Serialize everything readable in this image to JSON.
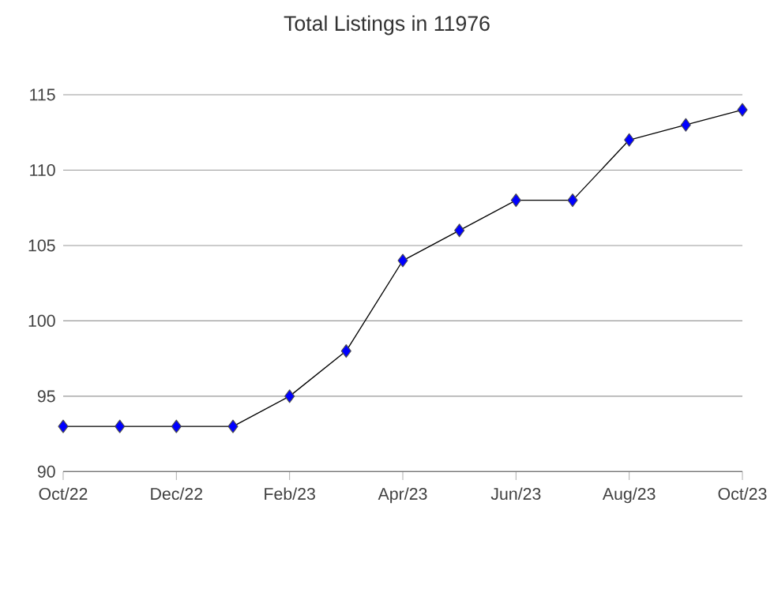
{
  "chart_data": {
    "type": "line",
    "title": "Total Listings in 11976",
    "categories": [
      "Oct/22",
      null,
      "Dec/22",
      null,
      "Feb/23",
      null,
      "Apr/23",
      null,
      "Jun/23",
      null,
      "Aug/23",
      null,
      "Oct/23"
    ],
    "series": [
      {
        "color": "#0000ff",
        "values": [
          93,
          93,
          93,
          93,
          95,
          98,
          104,
          106,
          108,
          108,
          112,
          113,
          114
        ]
      }
    ],
    "ylim": [
      90,
      115
    ],
    "yticks": [
      90,
      95,
      100,
      105,
      110,
      115
    ],
    "grid": "y",
    "marker": "diamond",
    "line_style": "solid"
  }
}
